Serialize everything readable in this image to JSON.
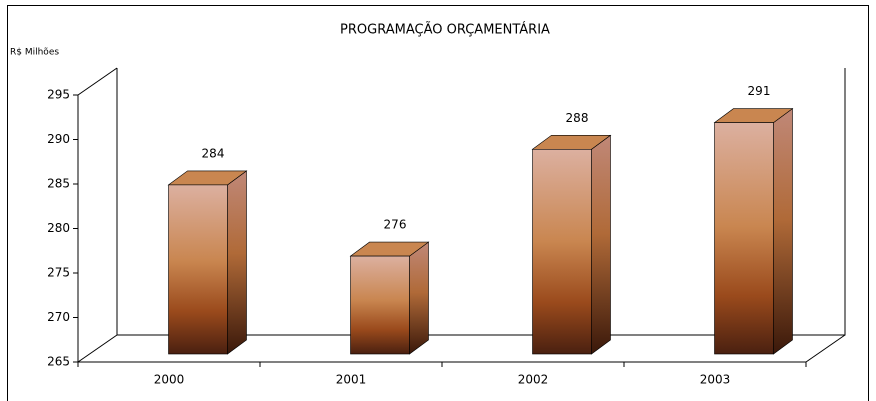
{
  "chart_data": {
    "type": "bar",
    "title": "PROGRAMAÇÃO ORÇAMENTÁRIA",
    "y_label": "R$ Milhões",
    "categories": [
      "2000",
      "2001",
      "2002",
      "2003"
    ],
    "values": [
      284,
      276,
      288,
      291
    ],
    "color": "#c98650",
    "ylim": [
      265,
      295
    ],
    "yticks": [
      265,
      270,
      275,
      280,
      285,
      290,
      295
    ]
  }
}
